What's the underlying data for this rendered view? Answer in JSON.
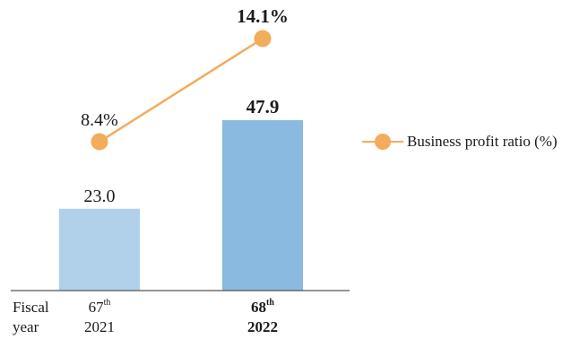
{
  "chart_data": {
    "type": "bar",
    "x_axis_label_lines": [
      "Fiscal",
      "year"
    ],
    "categories": [
      {
        "period": "67",
        "ordinal_suffix": "th",
        "year": "2021",
        "emphasis": false
      },
      {
        "period": "68",
        "ordinal_suffix": "th",
        "year": "2022",
        "emphasis": true
      }
    ],
    "bar_series": {
      "values": [
        23.0,
        47.9
      ],
      "value_labels": [
        "23.0",
        "47.9"
      ],
      "colors": [
        "#b1d0ea",
        "#8abadf"
      ]
    },
    "line_series": {
      "name": "Business profit ratio (%)",
      "values": [
        8.4,
        14.1
      ],
      "value_labels": [
        "8.4%",
        "14.1%"
      ],
      "color": "#f2ac5c"
    },
    "legend_position": "right",
    "grid": false
  }
}
